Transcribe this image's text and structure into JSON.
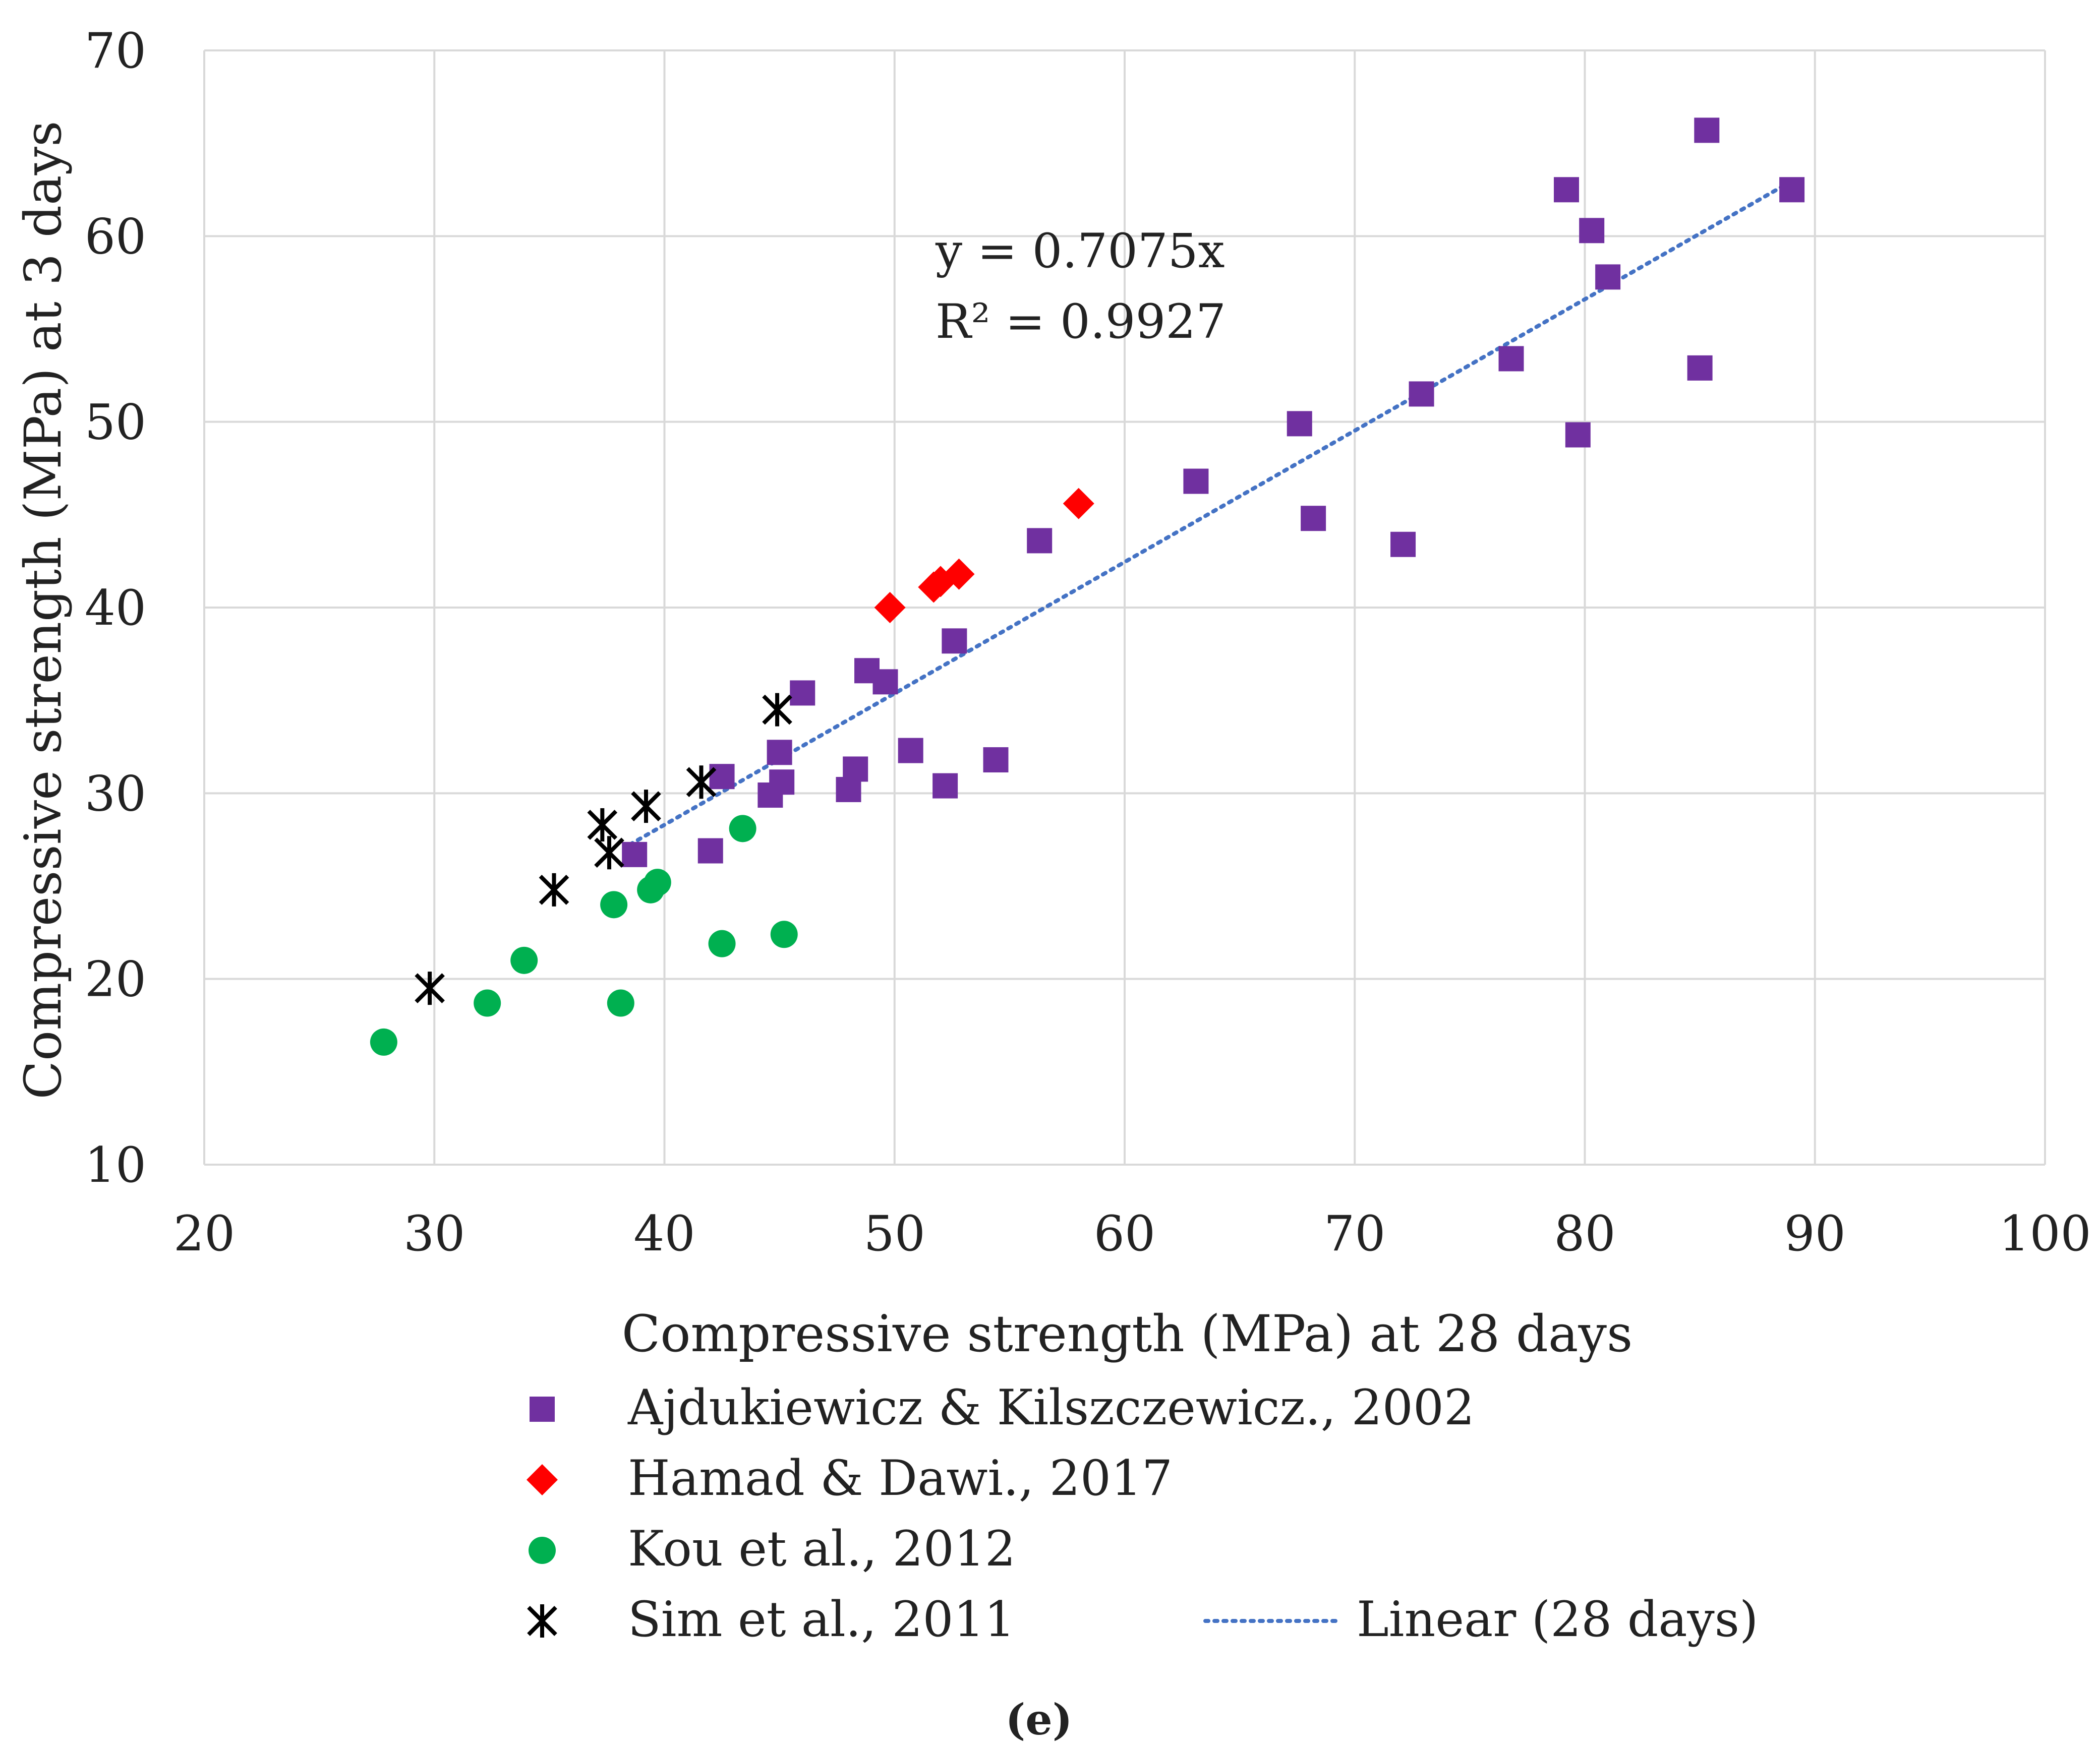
{
  "chart_data": {
    "type": "scatter",
    "title": "",
    "xlabel": "Compressive strength (MPa) at 28 days",
    "ylabel": "Compressive strength (MPa) at 3 days",
    "xlim": [
      20,
      100
    ],
    "ylim": [
      10,
      70
    ],
    "x_ticks": [
      "20",
      "30",
      "40",
      "50",
      "60",
      "70",
      "80",
      "90",
      "100"
    ],
    "y_ticks": [
      "10",
      "20",
      "30",
      "40",
      "50",
      "60",
      "70"
    ],
    "grid": true,
    "legend_position": "bottom",
    "caption": "(e)",
    "equation": {
      "line1": "y = 0.7075x",
      "line2": "R² = 0.9927"
    },
    "series": [
      {
        "name": "Ajdukiewicz & Kilszczewicz., 2002",
        "marker": "square",
        "color": "#7030a0",
        "points": [
          [
            38.7,
            26.7
          ],
          [
            42.0,
            26.9
          ],
          [
            42.5,
            30.9
          ],
          [
            44.6,
            29.9
          ],
          [
            45.0,
            32.2
          ],
          [
            45.1,
            30.6
          ],
          [
            46.0,
            35.4
          ],
          [
            48.0,
            30.2
          ],
          [
            48.3,
            31.3
          ],
          [
            48.8,
            36.6
          ],
          [
            49.6,
            36.0
          ],
          [
            50.7,
            32.3
          ],
          [
            52.2,
            30.4
          ],
          [
            52.6,
            38.2
          ],
          [
            54.4,
            31.8
          ],
          [
            56.3,
            43.6
          ],
          [
            63.1,
            46.8
          ],
          [
            67.6,
            49.9
          ],
          [
            68.2,
            44.8
          ],
          [
            72.1,
            43.4
          ],
          [
            72.9,
            51.5
          ],
          [
            76.8,
            53.4
          ],
          [
            79.2,
            62.5
          ],
          [
            79.7,
            49.3
          ],
          [
            80.3,
            60.3
          ],
          [
            81.0,
            57.8
          ],
          [
            85.0,
            52.9
          ],
          [
            85.3,
            65.7
          ],
          [
            89.0,
            62.5
          ]
        ]
      },
      {
        "name": "Hamad & Dawi., 2017",
        "marker": "diamond",
        "color": "#ff0000",
        "points": [
          [
            49.8,
            40.0
          ],
          [
            51.7,
            41.1
          ],
          [
            52.0,
            41.4
          ],
          [
            52.8,
            41.8
          ],
          [
            58.0,
            45.6
          ]
        ]
      },
      {
        "name": "Kou et al., 2012",
        "marker": "circle",
        "color": "#00b050",
        "points": [
          [
            27.8,
            16.6
          ],
          [
            32.3,
            18.7
          ],
          [
            33.9,
            21.0
          ],
          [
            37.8,
            24.0
          ],
          [
            38.1,
            18.7
          ],
          [
            39.4,
            24.8
          ],
          [
            39.7,
            25.2
          ],
          [
            42.5,
            21.9
          ],
          [
            43.4,
            28.1
          ],
          [
            45.2,
            22.4
          ]
        ]
      },
      {
        "name": "Sim et al., 2011",
        "marker": "star",
        "color": "#000000",
        "points": [
          [
            29.8,
            19.5
          ],
          [
            35.2,
            24.8
          ],
          [
            37.3,
            28.3
          ],
          [
            37.6,
            26.8
          ],
          [
            39.2,
            29.3
          ],
          [
            41.6,
            30.6
          ],
          [
            44.9,
            34.5
          ]
        ]
      }
    ],
    "trendline": {
      "name": "Linear (28 days)",
      "style": "dotted",
      "color": "#4472c4",
      "slope": 0.7075,
      "x_range": [
        38.5,
        89.0
      ]
    }
  }
}
